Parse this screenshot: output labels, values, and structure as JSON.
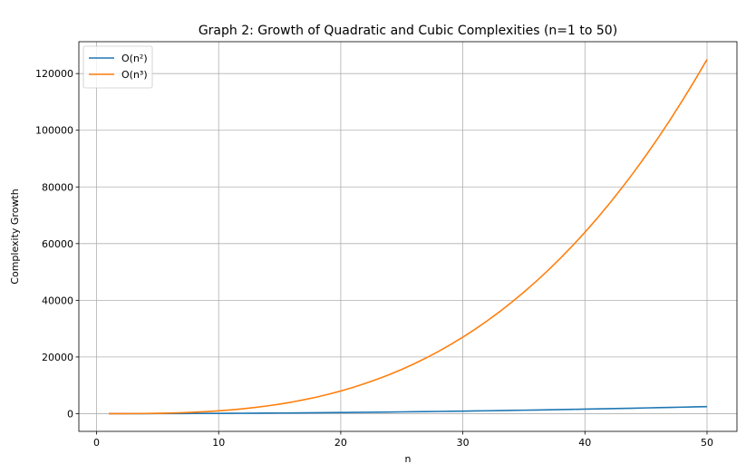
{
  "chart_data": {
    "type": "line",
    "title": "Graph 2: Growth of Quadratic and Cubic Complexities (n=1 to 50)",
    "xlabel": "n",
    "ylabel": "Complexity Growth",
    "xlim": [
      -1.45,
      52.45
    ],
    "ylim": [
      -6250,
      131250
    ],
    "x_ticks": [
      0,
      10,
      20,
      30,
      40,
      50
    ],
    "y_ticks": [
      0,
      20000,
      40000,
      60000,
      80000,
      100000,
      120000
    ],
    "grid": true,
    "legend_position": "upper-left",
    "x": [
      1,
      2,
      3,
      4,
      5,
      6,
      7,
      8,
      9,
      10,
      11,
      12,
      13,
      14,
      15,
      16,
      17,
      18,
      19,
      20,
      21,
      22,
      23,
      24,
      25,
      26,
      27,
      28,
      29,
      30,
      31,
      32,
      33,
      34,
      35,
      36,
      37,
      38,
      39,
      40,
      41,
      42,
      43,
      44,
      45,
      46,
      47,
      48,
      49,
      50
    ],
    "series": [
      {
        "name": "O(n²)",
        "color": "#1f77b4",
        "values": [
          1,
          4,
          9,
          16,
          25,
          36,
          49,
          64,
          81,
          100,
          121,
          144,
          169,
          196,
          225,
          256,
          289,
          324,
          361,
          400,
          441,
          484,
          529,
          576,
          625,
          676,
          729,
          784,
          841,
          900,
          961,
          1024,
          1089,
          1156,
          1225,
          1296,
          1369,
          1444,
          1521,
          1600,
          1681,
          1764,
          1849,
          1936,
          2025,
          2116,
          2209,
          2304,
          2401,
          2500
        ]
      },
      {
        "name": "O(n³)",
        "color": "#ff7f0e",
        "values": [
          1,
          8,
          27,
          64,
          125,
          216,
          343,
          512,
          729,
          1000,
          1331,
          1728,
          2197,
          2744,
          3375,
          4096,
          4913,
          5832,
          6859,
          8000,
          9261,
          10648,
          12167,
          13824,
          15625,
          17576,
          19683,
          21952,
          24389,
          27000,
          29791,
          32768,
          35937,
          39304,
          42875,
          46656,
          50653,
          54872,
          59319,
          64000,
          68921,
          74088,
          79507,
          85184,
          91125,
          97336,
          103823,
          110592,
          117649,
          125000
        ]
      }
    ]
  }
}
